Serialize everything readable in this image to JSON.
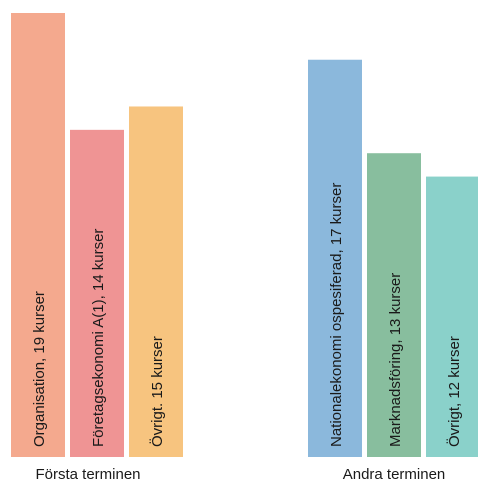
{
  "chart_data": {
    "type": "bar",
    "groups": [
      {
        "name": "Första terminen",
        "bars": [
          {
            "label": "Organisation, 19 kurser",
            "value": 19,
            "color": "#F4A98E"
          },
          {
            "label": "Företagsekonomi A(1), 14 kurser",
            "value": 14,
            "color": "#EF9494"
          },
          {
            "label": "Övrigt. 15 kurser",
            "value": 15,
            "color": "#F7C47F"
          }
        ]
      },
      {
        "name": "Andra terminen",
        "bars": [
          {
            "label": "Nationalekonomi ospesiferad, 17 kurser",
            "value": 17,
            "color": "#8BB8DC"
          },
          {
            "label": "Marknadsföring, 13 kurser",
            "value": 13,
            "color": "#88BE9E"
          },
          {
            "label": "Övrigt, 12 kurser",
            "value": 12,
            "color": "#8AD1CA"
          }
        ]
      }
    ],
    "ylim": [
      0,
      19
    ],
    "grid": false,
    "legend": "none"
  }
}
